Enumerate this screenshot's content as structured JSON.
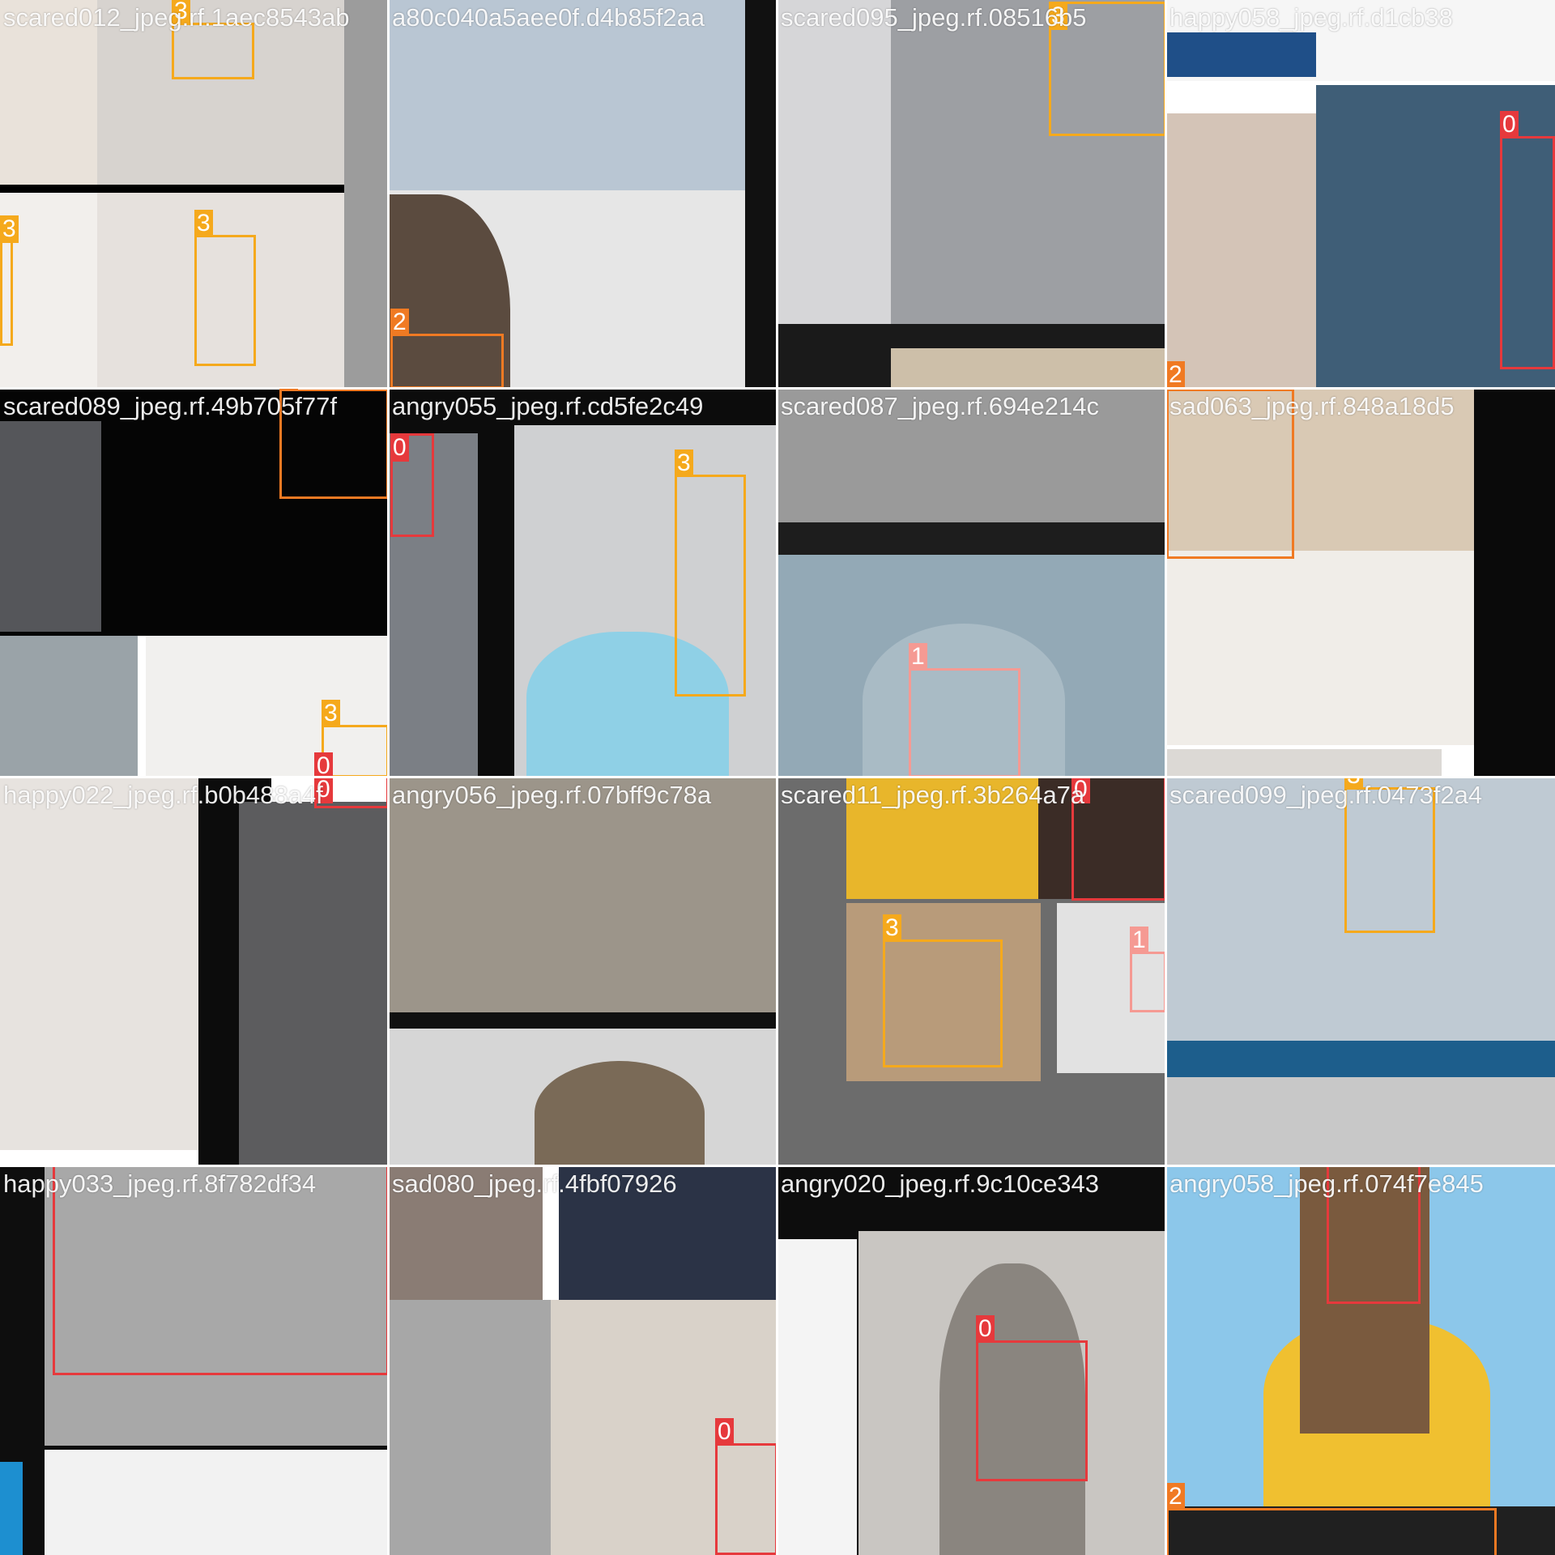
{
  "class_colors": {
    "0": "#e6393c",
    "1": "#f59a93",
    "2": "#f07a23",
    "3": "#f5a91c"
  },
  "tiles": [
    {
      "label": "scared012_jpeg.rf.1aec8543ab",
      "photos": [
        {
          "c": "#e9e2da"
        },
        {
          "c": "#d7d3cf"
        },
        {
          "c": "#f2efec"
        },
        {
          "c": "#e6e1dd"
        },
        {
          "c": "#9c9c9c"
        },
        {
          "c": "#000000"
        }
      ],
      "boxes": [
        {
          "cls": "3"
        },
        {
          "cls": "3"
        },
        {
          "cls": "3"
        }
      ]
    },
    {
      "label": "a80c040a5aee0f.d4b85f2aa",
      "photos": [
        {
          "c": "#b9c6d3"
        },
        {
          "c": "#e6e6e6"
        },
        {
          "c": "#5b4b3f"
        },
        {
          "c": "#111111"
        }
      ],
      "boxes": [
        {
          "cls": "2"
        }
      ]
    },
    {
      "label": "scared095_jpeg.rf.08516b5",
      "photos": [
        {
          "c": "#d6d6d8"
        },
        {
          "c": "#9d9fa3"
        },
        {
          "c": "#1a1a1a"
        },
        {
          "c": "#cdbfa9"
        }
      ],
      "boxes": [
        {
          "cls": "3"
        }
      ]
    },
    {
      "label": "happy058_jpeg.rf.d1cb38",
      "photos": [
        {
          "c": "#f6f6f6"
        },
        {
          "c": "#3f5e77"
        },
        {
          "c": "#d4c4b7"
        },
        {
          "c": "#1f4f88"
        }
      ],
      "boxes": [
        {
          "cls": "0"
        },
        {
          "cls": "2"
        }
      ]
    },
    {
      "label": "scared089_jpeg.rf.49b705f77f",
      "photos": [
        {
          "c": "#050505"
        },
        {
          "c": "#55565a"
        },
        {
          "c": "#9aa3a8"
        },
        {
          "c": "#f1f0ee"
        }
      ],
      "boxes": [
        {
          "cls": "2"
        },
        {
          "cls": "3"
        },
        {
          "cls": "0"
        }
      ]
    },
    {
      "label": "angry055_jpeg.rf.cd5fe2c49",
      "photos": [
        {
          "c": "#0c0c0c"
        },
        {
          "c": "#7b7f85"
        },
        {
          "c": "#cfd0d2"
        },
        {
          "c": "#8fd0e6"
        }
      ],
      "boxes": [
        {
          "cls": "0"
        },
        {
          "cls": "3"
        }
      ]
    },
    {
      "label": "scared087_jpeg.rf.694e214c",
      "photos": [
        {
          "c": "#9a9a9a"
        },
        {
          "c": "#1d1d1d"
        },
        {
          "c": "#93a9b6"
        },
        {
          "c": "#a9bbc5"
        }
      ],
      "boxes": [
        {
          "cls": "1"
        }
      ]
    },
    {
      "label": "sad063_jpeg.rf.848a18d5",
      "photos": [
        {
          "c": "#d9c9b4"
        },
        {
          "c": "#f0ede8"
        },
        {
          "c": "#0a0a0a"
        },
        {
          "c": "#dcd9d5"
        }
      ],
      "boxes": [
        {
          "cls": "2"
        }
      ]
    },
    {
      "label": "happy022_jpeg.rf.b0b488a4f",
      "photos": [
        {
          "c": "#e7e3df"
        },
        {
          "c": "#0c0c0c"
        },
        {
          "c": "#5c5c5e"
        }
      ],
      "boxes": [
        {
          "cls": "0"
        }
      ]
    },
    {
      "label": "angry056_jpeg.rf.07bff9c78a",
      "photos": [
        {
          "c": "#9c958a"
        },
        {
          "c": "#101010"
        },
        {
          "c": "#d6d6d6"
        },
        {
          "c": "#7a6a57"
        }
      ],
      "boxes": []
    },
    {
      "label": "scared11_jpeg.rf.3b264a7a",
      "photos": [
        {
          "c": "#6c6c6c"
        },
        {
          "c": "#e8b62b"
        },
        {
          "c": "#3b2c26"
        },
        {
          "c": "#b89b7a"
        },
        {
          "c": "#e2e2e2"
        }
      ],
      "boxes": [
        {
          "cls": "0"
        },
        {
          "cls": "3"
        },
        {
          "cls": "1"
        }
      ]
    },
    {
      "label": "scared099_jpeg.rf.0473f2a4",
      "photos": [
        {
          "c": "#bfcad3"
        },
        {
          "c": "#1d5e8c"
        },
        {
          "c": "#c8c8c8"
        }
      ],
      "boxes": [
        {
          "cls": "3"
        }
      ]
    },
    {
      "label": "happy033_jpeg.rf.8f782df34",
      "photos": [
        {
          "c": "#0e0e0e"
        },
        {
          "c": "#a8a8a8"
        },
        {
          "c": "#f2f2f2"
        },
        {
          "c": "#1d8fd0"
        }
      ],
      "boxes": [
        {
          "cls": "0"
        }
      ]
    },
    {
      "label": "sad080_jpeg.rf.4fbf07926",
      "photos": [
        {
          "c": "#8a7c74"
        },
        {
          "c": "#2b3346"
        },
        {
          "c": "#a7a7a7"
        },
        {
          "c": "#d9d2c9"
        }
      ],
      "boxes": [
        {
          "cls": "0"
        }
      ]
    },
    {
      "label": "angry020_jpeg.rf.9c10ce343",
      "photos": [
        {
          "c": "#0d0d0d"
        },
        {
          "c": "#f4f4f4"
        },
        {
          "c": "#c9c6c2"
        },
        {
          "c": "#8a857f"
        }
      ],
      "boxes": [
        {
          "cls": "0"
        }
      ]
    },
    {
      "label": "angry058_jpeg.rf.074f7e845",
      "photos": [
        {
          "c": "#8cc7ea"
        },
        {
          "c": "#f0c030"
        },
        {
          "c": "#7a5a3e"
        },
        {
          "c": "#202020"
        }
      ],
      "boxes": [
        {
          "cls": "0"
        },
        {
          "cls": "2"
        }
      ]
    }
  ]
}
